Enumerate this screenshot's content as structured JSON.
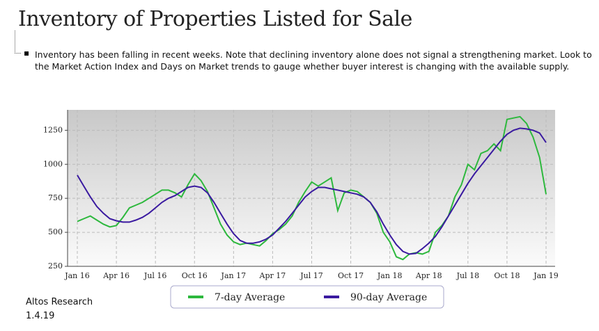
{
  "header": {
    "title": "Inventory of Properties Listed for Sale",
    "note": "Inventory has been falling in recent weeks. Note that declining inventory alone does not signal a strengthening market. Look to the Market Action Index and Days on Market trends to gauge whether buyer interest is changing with the available supply."
  },
  "chart_data": {
    "type": "line",
    "categories": [
      "Jan 16",
      null,
      null,
      null,
      null,
      null,
      "Apr 16",
      null,
      null,
      null,
      null,
      null,
      "Jul 16",
      null,
      null,
      null,
      null,
      null,
      "Oct 16",
      null,
      null,
      null,
      null,
      null,
      "Jan 17",
      null,
      null,
      null,
      null,
      null,
      "Apr 17",
      null,
      null,
      null,
      null,
      null,
      "Jul 17",
      null,
      null,
      null,
      null,
      null,
      "Oct 17",
      null,
      null,
      null,
      null,
      null,
      "Jan 18",
      null,
      null,
      null,
      null,
      null,
      "Apr 18",
      null,
      null,
      null,
      null,
      null,
      "Jul 18",
      null,
      null,
      null,
      null,
      null,
      "Oct 18",
      null,
      null,
      null,
      null,
      null,
      "Jan 19"
    ],
    "series": [
      {
        "name": "7-day Average",
        "color": "#2db83d",
        "values": [
          580,
          600,
          620,
          590,
          560,
          540,
          550,
          610,
          680,
          700,
          720,
          750,
          780,
          810,
          810,
          790,
          760,
          850,
          930,
          880,
          800,
          680,
          560,
          480,
          430,
          410,
          420,
          410,
          400,
          440,
          490,
          520,
          560,
          620,
          720,
          800,
          870,
          840,
          870,
          900,
          660,
          790,
          810,
          800,
          760,
          720,
          640,
          500,
          430,
          320,
          300,
          340,
          350,
          340,
          360,
          500,
          550,
          620,
          760,
          850,
          1000,
          960,
          1080,
          1100,
          1150,
          1100,
          1330,
          1340,
          1350,
          1300,
          1200,
          1050,
          780
        ]
      },
      {
        "name": "90-day Average",
        "color": "#3a1aa0",
        "values": [
          920,
          840,
          760,
          690,
          640,
          600,
          585,
          575,
          575,
          590,
          610,
          640,
          680,
          720,
          750,
          770,
          800,
          830,
          840,
          830,
          790,
          720,
          640,
          560,
          490,
          440,
          420,
          420,
          430,
          450,
          480,
          530,
          580,
          640,
          700,
          760,
          800,
          830,
          830,
          820,
          810,
          800,
          790,
          780,
          760,
          720,
          650,
          560,
          480,
          410,
          360,
          340,
          345,
          380,
          420,
          470,
          540,
          620,
          700,
          780,
          860,
          930,
          990,
          1050,
          1110,
          1170,
          1220,
          1250,
          1265,
          1260,
          1250,
          1230,
          1160
        ]
      }
    ],
    "ylim": [
      250,
      1400
    ],
    "yticks": [
      250,
      500,
      750,
      1000,
      1250
    ],
    "grid": true
  },
  "footer": {
    "source": "Altos Research",
    "date": "1.4.19"
  }
}
